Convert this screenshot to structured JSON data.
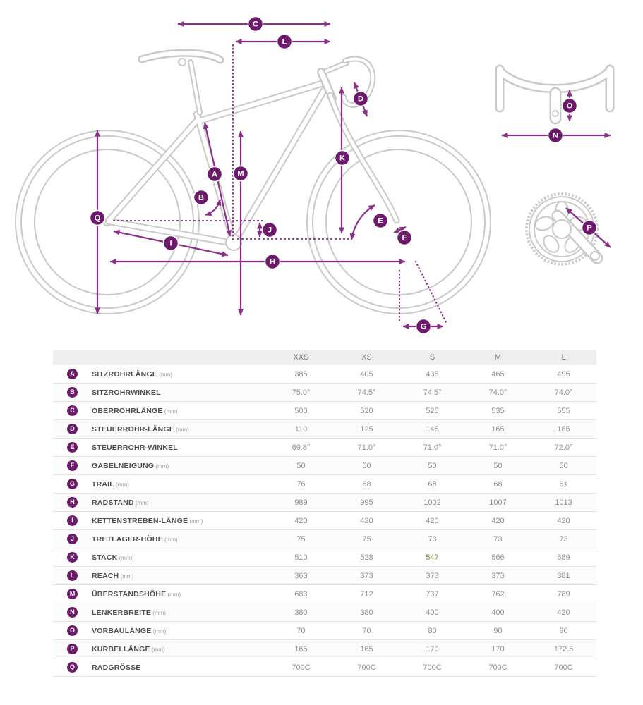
{
  "diagram": {
    "name": "bike-geometry-diagram",
    "labels": [
      "A",
      "B",
      "C",
      "D",
      "E",
      "F",
      "G",
      "H",
      "I",
      "J",
      "K",
      "L",
      "M",
      "N",
      "O",
      "P",
      "Q"
    ],
    "colors": {
      "badge_purple": "#6d1a6d",
      "arrow_purple": "#8b2f8b",
      "bike_outline_gray": "#c9c9c9"
    }
  },
  "table": {
    "size_headers": [
      "XXS",
      "XS",
      "S",
      "M",
      "L"
    ],
    "highlight_color": "#7b8a33",
    "rows": [
      {
        "letter": "A",
        "label": "SITZROHRLÄNGE",
        "unit": "(mm)",
        "values": [
          "385",
          "405",
          "435",
          "465",
          "495"
        ]
      },
      {
        "letter": "B",
        "label": "SITZROHRWINKEL",
        "unit": "",
        "values": [
          "75.0°",
          "74.5°",
          "74.5°",
          "74.0°",
          "74.0°"
        ]
      },
      {
        "letter": "C",
        "label": "OBERROHRLÄNGE",
        "unit": "(mm)",
        "values": [
          "500",
          "520",
          "525",
          "535",
          "555"
        ]
      },
      {
        "letter": "D",
        "label": "STEUERROHR-LÄNGE",
        "unit": "(mm)",
        "values": [
          "110",
          "125",
          "145",
          "165",
          "185"
        ]
      },
      {
        "letter": "E",
        "label": "STEUERROHR-WINKEL",
        "unit": "",
        "values": [
          "69.8°",
          "71.0°",
          "71.0°",
          "71.0°",
          "72.0°"
        ]
      },
      {
        "letter": "F",
        "label": "GABELNEIGUNG",
        "unit": "(mm)",
        "values": [
          "50",
          "50",
          "50",
          "50",
          "50"
        ]
      },
      {
        "letter": "G",
        "label": "TRAIL",
        "unit": "(mm)",
        "values": [
          "76",
          "68",
          "68",
          "68",
          "61"
        ]
      },
      {
        "letter": "H",
        "label": "RADSTAND",
        "unit": "(mm)",
        "values": [
          "989",
          "995",
          "1002",
          "1007",
          "1013"
        ]
      },
      {
        "letter": "I",
        "label": "KETTENSTREBEN-LÄNGE",
        "unit": "(mm)",
        "values": [
          "420",
          "420",
          "420",
          "420",
          "420"
        ]
      },
      {
        "letter": "J",
        "label": "TRETLAGER-HÖHE",
        "unit": "(mm)",
        "values": [
          "75",
          "75",
          "73",
          "73",
          "73"
        ]
      },
      {
        "letter": "K",
        "label": "STACK",
        "unit": "(mm)",
        "values": [
          "510",
          "528",
          "547",
          "566",
          "589"
        ],
        "highlight_col": 2
      },
      {
        "letter": "L",
        "label": "REACH",
        "unit": "(mm)",
        "values": [
          "363",
          "373",
          "373",
          "373",
          "381"
        ]
      },
      {
        "letter": "M",
        "label": "ÜBERSTANDSHÖHE",
        "unit": "(mm)",
        "values": [
          "683",
          "712",
          "737",
          "762",
          "789"
        ]
      },
      {
        "letter": "N",
        "label": "LENKERBREITE",
        "unit": "(mm)",
        "values": [
          "380",
          "380",
          "400",
          "400",
          "420"
        ]
      },
      {
        "letter": "O",
        "label": "VORBAULÄNGE",
        "unit": "(mm)",
        "values": [
          "70",
          "70",
          "80",
          "90",
          "90"
        ]
      },
      {
        "letter": "P",
        "label": "KURBELLÄNGE",
        "unit": "(mm)",
        "values": [
          "165",
          "165",
          "170",
          "170",
          "172.5"
        ]
      },
      {
        "letter": "Q",
        "label": "RADGRÖSSE",
        "unit": "",
        "values": [
          "700C",
          "700C",
          "700C",
          "700C",
          "700C"
        ]
      }
    ]
  }
}
